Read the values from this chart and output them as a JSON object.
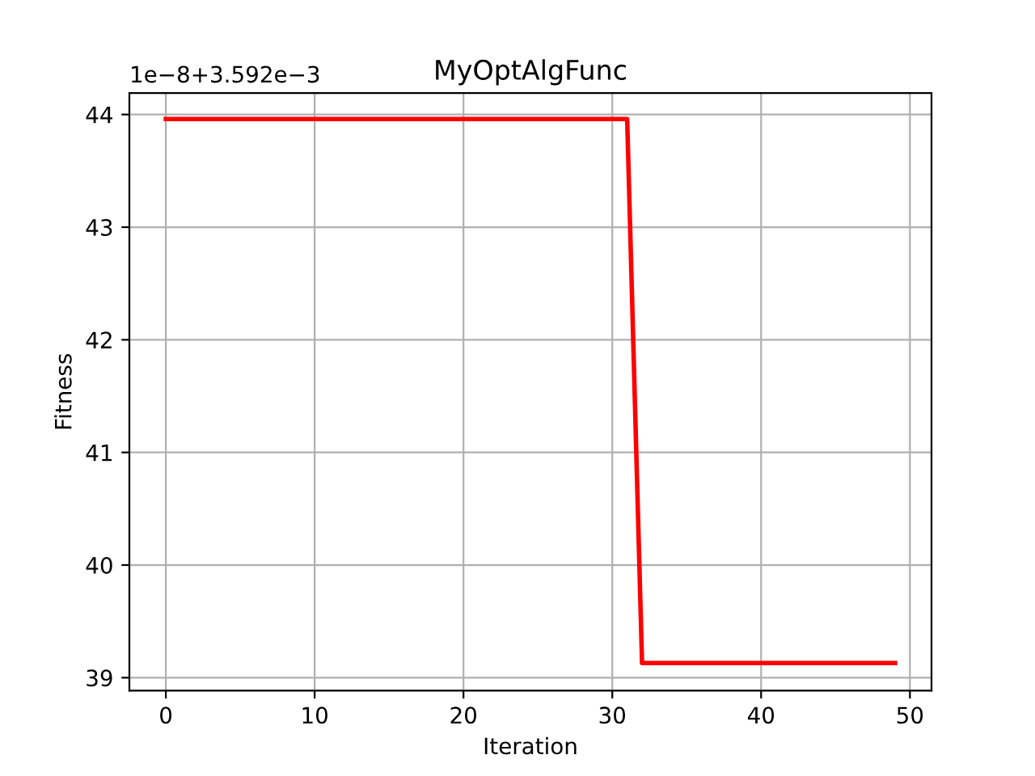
{
  "chart_data": {
    "type": "line",
    "title": "MyOptAlgFunc",
    "xlabel": "Iteration",
    "ylabel": "Fitness",
    "annotations": [
      "1e−8+3.592e−3"
    ],
    "x": [
      0,
      31,
      32,
      49
    ],
    "series": [
      {
        "color": "#ff0000",
        "values": [
          43.96,
          43.96,
          39.13,
          39.13
        ]
      }
    ],
    "xlim": [
      -2.45,
      51.45
    ],
    "xticks": [
      0,
      10,
      20,
      30,
      40,
      50
    ],
    "ylim": [
      38.885,
      44.19
    ],
    "yticks": [
      39,
      40,
      41,
      42,
      43,
      44
    ],
    "grid": true,
    "marker": "none",
    "line_style": "solid"
  }
}
